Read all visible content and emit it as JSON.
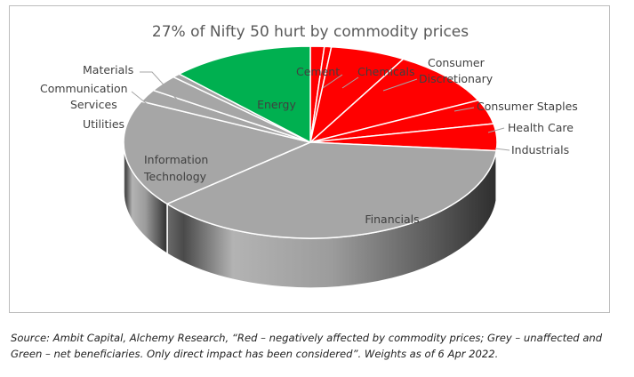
{
  "chart_data": {
    "type": "pie",
    "title": "27% of Nifty 50  hurt by commodity prices",
    "labels": [
      "Cement",
      "Chemicals",
      "Consumer Discretionary",
      "Consumer Staples",
      "Health Care",
      "Industrials",
      "Financials",
      "Information Technology",
      "Utilities",
      "Communication Services",
      "Materials",
      "Energy"
    ],
    "values": [
      1.2,
      0.6,
      6.5,
      9.5,
      4.1,
      4.5,
      37.5,
      18.1,
      2.1,
      2.8,
      0.7,
      12.4
    ],
    "groups": [
      "red",
      "red",
      "red",
      "red",
      "red",
      "red",
      "grey",
      "grey",
      "grey",
      "grey",
      "grey",
      "green"
    ],
    "colors": {
      "red": "#ff0000",
      "grey": "#a6a6a6",
      "green": "#00b050"
    }
  },
  "source_note": "Source:  Ambit Capital, Alchemy Research, “Red – negatively affected by commodity prices;  Grey – unaffected and Green – net beneficiaries. Only direct impact has been considered”. Weights as of 6 Apr 2022."
}
